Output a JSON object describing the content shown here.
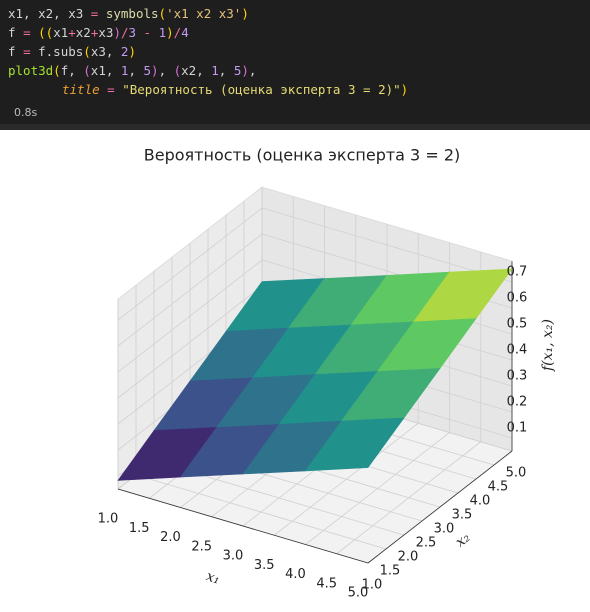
{
  "code": {
    "lines": [
      [
        {
          "text": "x1, x2, x3 ",
          "color": "#d4d4d4"
        },
        {
          "text": "=",
          "color": "#f06fa0"
        },
        {
          "text": " ",
          "color": "#d4d4d4"
        },
        {
          "text": "symbols",
          "color": "#dcdcaa"
        },
        {
          "text": "(",
          "color": "#ffd700"
        },
        {
          "text": "'x1 x2 x3'",
          "color": "#e6c07b"
        },
        {
          "text": ")",
          "color": "#ffd700"
        }
      ],
      [
        {
          "text": "f ",
          "color": "#d4d4d4"
        },
        {
          "text": "=",
          "color": "#f06fa0"
        },
        {
          "text": " ",
          "color": "#d4d4d4"
        },
        {
          "text": "((",
          "color": "#ffd700"
        },
        {
          "text": "x1",
          "color": "#d4d4d4"
        },
        {
          "text": "+",
          "color": "#f06fa0"
        },
        {
          "text": "x2",
          "color": "#d4d4d4"
        },
        {
          "text": "+",
          "color": "#f06fa0"
        },
        {
          "text": "x3",
          "color": "#d4d4d4"
        },
        {
          "text": ")",
          "color": "#da70d6"
        },
        {
          "text": "/",
          "color": "#f06fa0"
        },
        {
          "text": "3",
          "color": "#c39bf3"
        },
        {
          "text": " - ",
          "color": "#f06fa0"
        },
        {
          "text": "1",
          "color": "#c39bf3"
        },
        {
          "text": ")",
          "color": "#ffd700"
        },
        {
          "text": "/",
          "color": "#f06fa0"
        },
        {
          "text": "4",
          "color": "#c39bf3"
        }
      ],
      [
        {
          "text": "f ",
          "color": "#d4d4d4"
        },
        {
          "text": "=",
          "color": "#f06fa0"
        },
        {
          "text": " f.subs",
          "color": "#d4d4d4"
        },
        {
          "text": "(",
          "color": "#ffd700"
        },
        {
          "text": "x3, ",
          "color": "#d4d4d4"
        },
        {
          "text": "2",
          "color": "#c39bf3"
        },
        {
          "text": ")",
          "color": "#ffd700"
        }
      ],
      [
        {
          "text": "plot3d",
          "color": "#a6e22e"
        },
        {
          "text": "(",
          "color": "#ffd700"
        },
        {
          "text": "f, ",
          "color": "#d4d4d4"
        },
        {
          "text": "(",
          "color": "#da70d6"
        },
        {
          "text": "x1, ",
          "color": "#d4d4d4"
        },
        {
          "text": "1",
          "color": "#c39bf3"
        },
        {
          "text": ", ",
          "color": "#d4d4d4"
        },
        {
          "text": "5",
          "color": "#c39bf3"
        },
        {
          "text": ")",
          "color": "#da70d6"
        },
        {
          "text": ", ",
          "color": "#d4d4d4"
        },
        {
          "text": "(",
          "color": "#da70d6"
        },
        {
          "text": "x2, ",
          "color": "#d4d4d4"
        },
        {
          "text": "1",
          "color": "#c39bf3"
        },
        {
          "text": ", ",
          "color": "#d4d4d4"
        },
        {
          "text": "5",
          "color": "#c39bf3"
        },
        {
          "text": ")",
          "color": "#da70d6"
        },
        {
          "text": ",",
          "color": "#d4d4d4"
        }
      ],
      [
        {
          "text": "title",
          "color": "#f0a030",
          "italic": true
        },
        {
          "text": " = ",
          "color": "#f06fa0"
        },
        {
          "text": "\"Вероятность (оценка эксперта 3 = 2)\"",
          "color": "#e6db74"
        },
        {
          "text": ")",
          "color": "#ffd700"
        }
      ]
    ],
    "time": "0.8s"
  },
  "chart_data": {
    "type": "surface",
    "title": "Вероятность (оценка эксперта 3 = 2)",
    "xlabel": "x₁",
    "ylabel": "x₂",
    "zlabel": "f(x₁, x₂)",
    "colormap": "viridis",
    "x": [
      1,
      2,
      3,
      4,
      5
    ],
    "y": [
      1,
      2,
      3,
      4,
      5
    ],
    "z": [
      [
        0.083,
        0.167,
        0.25,
        0.333,
        0.417
      ],
      [
        0.167,
        0.25,
        0.333,
        0.417,
        0.5
      ],
      [
        0.25,
        0.333,
        0.417,
        0.5,
        0.583
      ],
      [
        0.333,
        0.417,
        0.5,
        0.583,
        0.667
      ],
      [
        0.417,
        0.5,
        0.583,
        0.667,
        0.75
      ]
    ],
    "xlim": [
      1,
      5
    ],
    "ylim": [
      1,
      5
    ],
    "zlim": [
      0.05,
      0.78
    ],
    "xticks": [
      {
        "value": 1,
        "label": "1.0"
      },
      {
        "value": 1.5,
        "label": "1.5"
      },
      {
        "value": 2,
        "label": "2.0"
      },
      {
        "value": 2.5,
        "label": "2.5"
      },
      {
        "value": 3,
        "label": "3.0"
      },
      {
        "value": 3.5,
        "label": "3.5"
      },
      {
        "value": 4,
        "label": "4.0"
      },
      {
        "value": 4.5,
        "label": "4.5"
      },
      {
        "value": 5,
        "label": "5.0"
      }
    ],
    "yticks": [
      {
        "value": 1,
        "label": "1.0"
      },
      {
        "value": 1.5,
        "label": "1.5"
      },
      {
        "value": 2,
        "label": "2.0"
      },
      {
        "value": 2.5,
        "label": "2.5"
      },
      {
        "value": 3,
        "label": "3.0"
      },
      {
        "value": 3.5,
        "label": "3.5"
      },
      {
        "value": 4,
        "label": "4.0"
      },
      {
        "value": 4.5,
        "label": "4.5"
      },
      {
        "value": 5,
        "label": "5.0"
      }
    ],
    "zticks": [
      0.1,
      0.2,
      0.3,
      0.4,
      0.5,
      0.6,
      0.7
    ],
    "grid": true
  }
}
